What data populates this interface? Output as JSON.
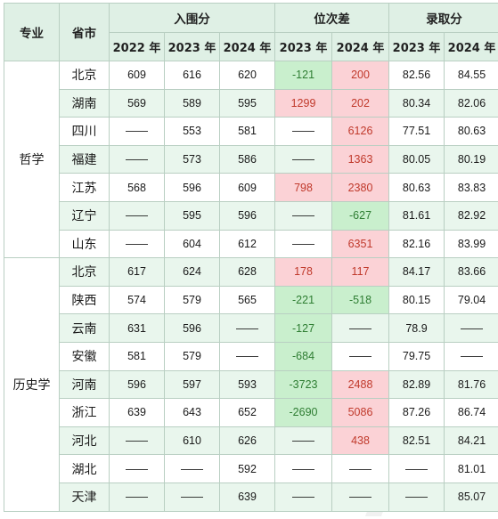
{
  "header": {
    "major": "专业",
    "province": "省市",
    "groups": {
      "cutoff": "入围分",
      "rank_diff": "位次差",
      "admission": "录取分"
    },
    "years": {
      "cutoff": [
        "2022 年",
        "2023 年",
        "2024 年"
      ],
      "rank_diff": [
        "2023 年",
        "2024 年"
      ],
      "admission": [
        "2023 年",
        "2024 年"
      ]
    }
  },
  "colors": {
    "positive_bg": "#fbd2d6",
    "negative_bg": "#c9efcd",
    "header_bg": "#dff0e5",
    "alt_row_bg": "#e9f6ed"
  },
  "groups": [
    {
      "major": "哲学",
      "rows": [
        {
          "prov": "北京",
          "c22": "609",
          "c23": "616",
          "c24": "620",
          "r23": "-121",
          "r23s": "neg",
          "r24": "200",
          "r24s": "pos",
          "a23": "82.56",
          "a24": "84.55"
        },
        {
          "prov": "湖南",
          "c22": "569",
          "c23": "589",
          "c24": "595",
          "r23": "1299",
          "r23s": "pos",
          "r24": "202",
          "r24s": "pos",
          "a23": "80.34",
          "a24": "82.06"
        },
        {
          "prov": "四川",
          "c22": "——",
          "c23": "553",
          "c24": "581",
          "r23": "——",
          "r23s": "",
          "r24": "6126",
          "r24s": "pos",
          "a23": "77.51",
          "a24": "80.63"
        },
        {
          "prov": "福建",
          "c22": "——",
          "c23": "573",
          "c24": "586",
          "r23": "——",
          "r23s": "",
          "r24": "1363",
          "r24s": "pos",
          "a23": "80.05",
          "a24": "80.19"
        },
        {
          "prov": "江苏",
          "c22": "568",
          "c23": "596",
          "c24": "609",
          "r23": "798",
          "r23s": "pos",
          "r24": "2380",
          "r24s": "pos",
          "a23": "80.63",
          "a24": "83.83"
        },
        {
          "prov": "辽宁",
          "c22": "——",
          "c23": "595",
          "c24": "596",
          "r23": "——",
          "r23s": "",
          "r24": "-627",
          "r24s": "neg",
          "a23": "81.61",
          "a24": "82.92"
        },
        {
          "prov": "山东",
          "c22": "——",
          "c23": "604",
          "c24": "612",
          "r23": "——",
          "r23s": "",
          "r24": "6351",
          "r24s": "pos",
          "a23": "82.16",
          "a24": "83.99"
        }
      ]
    },
    {
      "major": "历史学",
      "rows": [
        {
          "prov": "北京",
          "c22": "617",
          "c23": "624",
          "c24": "628",
          "r23": "178",
          "r23s": "pos",
          "r24": "117",
          "r24s": "pos",
          "a23": "84.17",
          "a24": "83.66"
        },
        {
          "prov": "陕西",
          "c22": "574",
          "c23": "579",
          "c24": "565",
          "r23": "-221",
          "r23s": "neg",
          "r24": "-518",
          "r24s": "neg",
          "a23": "80.15",
          "a24": "79.04"
        },
        {
          "prov": "云南",
          "c22": "631",
          "c23": "596",
          "c24": "——",
          "r23": "-127",
          "r23s": "neg",
          "r24": "——",
          "r24s": "",
          "a23": "78.9",
          "a24": "——"
        },
        {
          "prov": "安徽",
          "c22": "581",
          "c23": "579",
          "c24": "——",
          "r23": "-684",
          "r23s": "neg",
          "r24": "——",
          "r24s": "",
          "a23": "79.75",
          "a24": "——"
        },
        {
          "prov": "河南",
          "c22": "596",
          "c23": "597",
          "c24": "593",
          "r23": "-3723",
          "r23s": "neg",
          "r24": "2488",
          "r24s": "pos",
          "a23": "82.89",
          "a24": "81.76"
        },
        {
          "prov": "浙江",
          "c22": "639",
          "c23": "643",
          "c24": "652",
          "r23": "-2690",
          "r23s": "neg",
          "r24": "5086",
          "r24s": "pos",
          "a23": "87.26",
          "a24": "86.74"
        },
        {
          "prov": "河北",
          "c22": "——",
          "c23": "610",
          "c24": "626",
          "r23": "——",
          "r23s": "",
          "r24": "438",
          "r24s": "pos",
          "a23": "82.51",
          "a24": "84.21"
        },
        {
          "prov": "湖北",
          "c22": "——",
          "c23": "——",
          "c24": "592",
          "r23": "——",
          "r23s": "",
          "r24": "——",
          "r24s": "",
          "a23": "——",
          "a24": "81.01"
        },
        {
          "prov": "天津",
          "c22": "——",
          "c23": "——",
          "c24": "639",
          "r23": "——",
          "r23s": "",
          "r24": "——",
          "r24s": "",
          "a23": "——",
          "a24": "85.07"
        }
      ]
    }
  ]
}
